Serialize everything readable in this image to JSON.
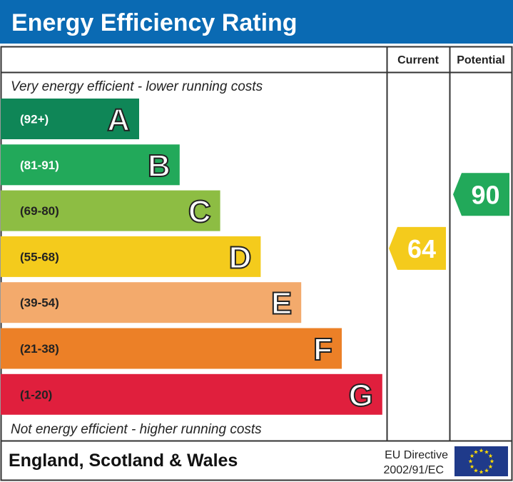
{
  "title": "Energy Efficiency Rating",
  "columns": {
    "current": "Current",
    "potential": "Potential"
  },
  "top_note": "Very energy efficient - lower running costs",
  "bottom_note": "Not energy efficient - higher running costs",
  "footer": {
    "region": "England, Scotland & Wales",
    "directive_line1": "EU Directive",
    "directive_line2": "2002/91/EC",
    "flag_icon": "eu-flag-icon"
  },
  "colors": {
    "header": "#0a6ab3"
  },
  "chart_data": {
    "type": "bar",
    "title": "Energy Efficiency Rating",
    "bands": [
      {
        "letter": "A",
        "range": "(92+)",
        "color": "#0f8657",
        "range_text_color": "#ffffff"
      },
      {
        "letter": "B",
        "range": "(81-91)",
        "color": "#22a95a",
        "range_text_color": "#ffffff"
      },
      {
        "letter": "C",
        "range": "(69-80)",
        "color": "#8dbd43",
        "range_text_color": "#222222"
      },
      {
        "letter": "D",
        "range": "(55-68)",
        "color": "#f4cb1c",
        "range_text_color": "#222222"
      },
      {
        "letter": "E",
        "range": "(39-54)",
        "color": "#f3aa6c",
        "range_text_color": "#222222"
      },
      {
        "letter": "F",
        "range": "(21-38)",
        "color": "#ec8027",
        "range_text_color": "#222222"
      },
      {
        "letter": "G",
        "range": "(1-20)",
        "color": "#e01f3d",
        "range_text_color": "#222222"
      }
    ],
    "current": {
      "value": "64",
      "band": "D"
    },
    "potential": {
      "value": "90",
      "band": "B"
    }
  }
}
